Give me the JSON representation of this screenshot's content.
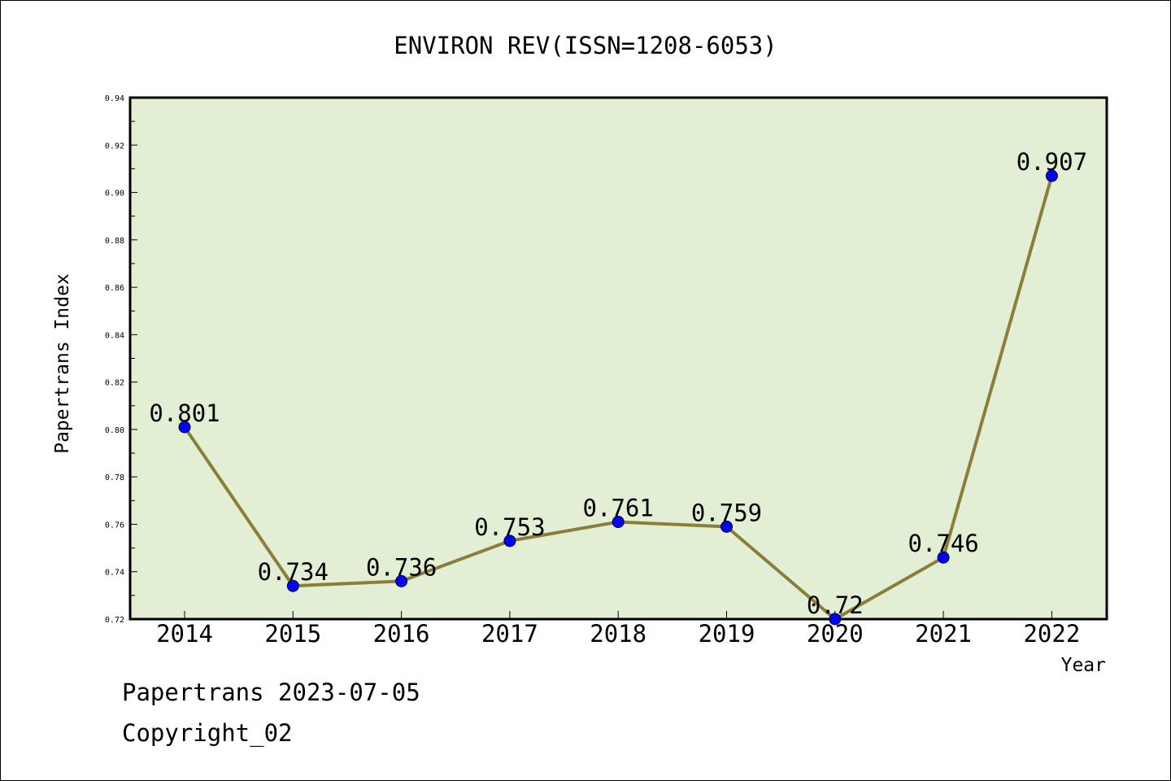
{
  "chart_data": {
    "type": "line",
    "title": "ENVIRON REV(ISSN=1208-6053)",
    "xlabel": "Year",
    "ylabel": "Papertrans Index",
    "categories": [
      "2014",
      "2015",
      "2016",
      "2017",
      "2018",
      "2019",
      "2020",
      "2021",
      "2022"
    ],
    "series": [
      {
        "values": [
          0.801,
          0.734,
          0.736,
          0.753,
          0.761,
          0.759,
          0.72,
          0.746,
          0.907
        ],
        "labels": [
          "0.801",
          "0.734",
          "0.736",
          "0.753",
          "0.761",
          "0.759",
          "0.72",
          "0.746",
          "0.907"
        ]
      }
    ],
    "ylim": [
      0.72,
      0.94
    ],
    "yticks": [
      "0.72",
      "0.74",
      "0.76",
      "0.78",
      "0.80",
      "0.82",
      "0.84",
      "0.86",
      "0.88",
      "0.90",
      "0.92",
      "0.94"
    ],
    "grid": false,
    "legend": "none",
    "colors": {
      "plot_background": "#e2efd4",
      "line": "#8b7d3a",
      "marker": "#0000ff",
      "axis": "#000000"
    }
  },
  "footer": {
    "date_text": "Papertrans 2023-07-05",
    "copyright_text": "Copyright_02"
  }
}
